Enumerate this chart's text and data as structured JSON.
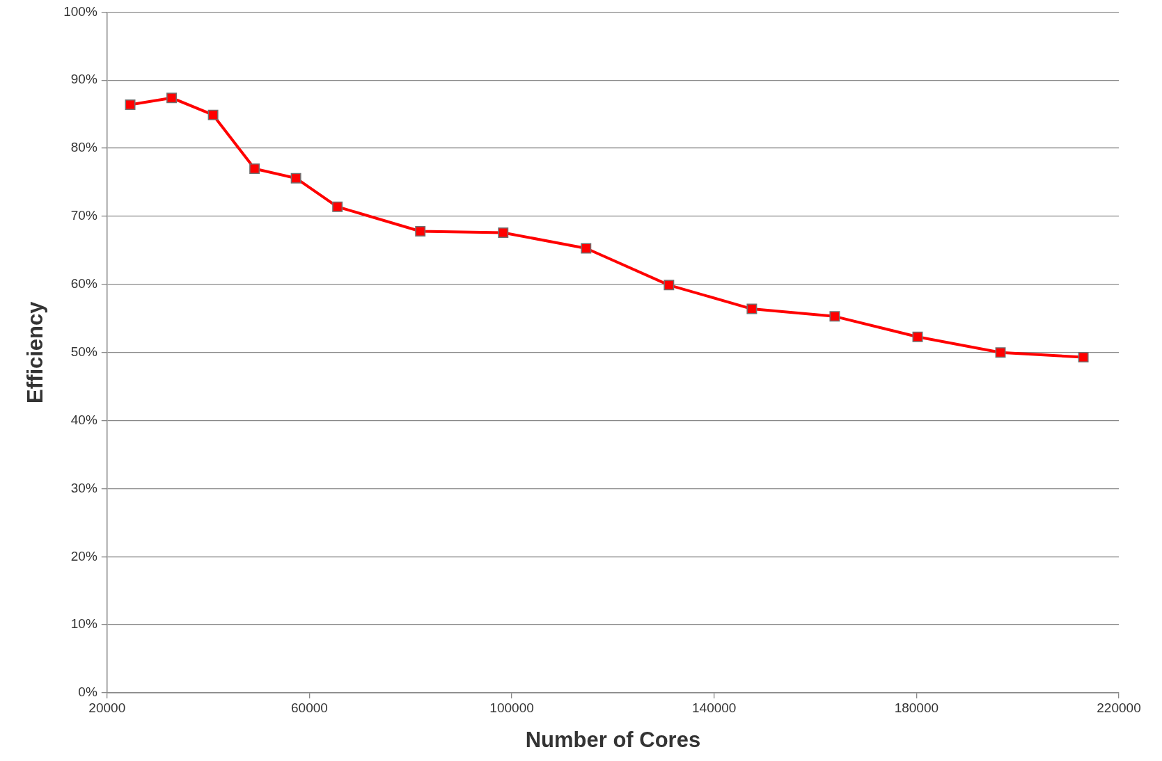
{
  "chart_data": {
    "type": "line",
    "xlabel": "Number of Cores",
    "ylabel": "Efficiency",
    "x": [
      24576,
      32768,
      40960,
      49152,
      57344,
      65536,
      81920,
      98304,
      114688,
      131072,
      147456,
      163840,
      180224,
      196608,
      212992
    ],
    "series": [
      {
        "color": "#ff0000",
        "values": [
          86.4,
          87.4,
          84.9,
          77.0,
          75.6,
          71.4,
          67.8,
          67.6,
          65.3,
          59.9,
          56.4,
          55.3,
          52.3,
          50.0,
          49.3
        ]
      }
    ],
    "xlim": [
      20000,
      220000
    ],
    "xticks": [
      20000,
      60000,
      100000,
      140000,
      180000,
      220000
    ],
    "ylim": [
      0,
      100
    ],
    "yticks": [
      {
        "value": 0,
        "label": "0%"
      },
      {
        "value": 10,
        "label": "10%"
      },
      {
        "value": 20,
        "label": "20%"
      },
      {
        "value": 30,
        "label": "30%"
      },
      {
        "value": 40,
        "label": "40%"
      },
      {
        "value": 50,
        "label": "50%"
      },
      {
        "value": 60,
        "label": "60%"
      },
      {
        "value": 70,
        "label": "70%"
      },
      {
        "value": 80,
        "label": "80%"
      },
      {
        "value": 90,
        "label": "90%"
      },
      {
        "value": 100,
        "label": "100%"
      }
    ],
    "grid": "y",
    "legend": false,
    "marker": "square",
    "line_style": "solid"
  }
}
